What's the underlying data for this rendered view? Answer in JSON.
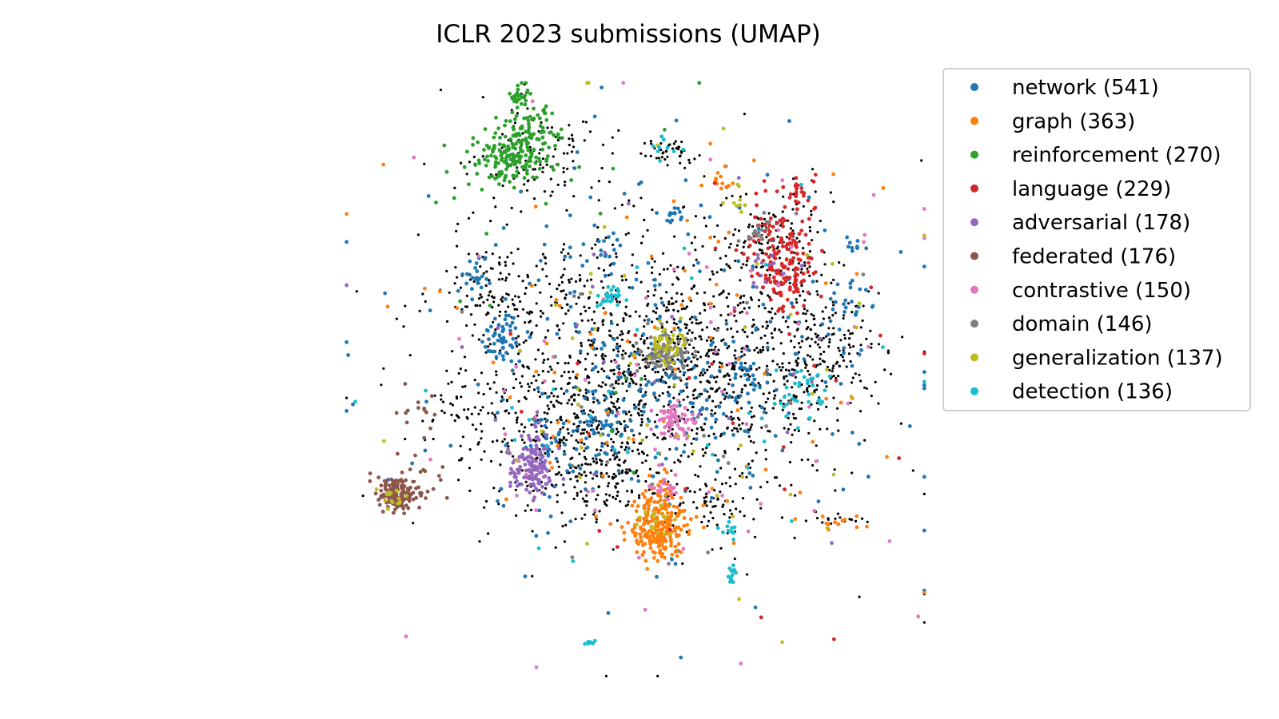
{
  "chart_data": {
    "type": "scatter",
    "title": "ICLR 2023 submissions (UMAP)",
    "xlabel": "",
    "ylabel": "",
    "axes_visible": false,
    "grid": false,
    "xlim": [
      -10,
      10
    ],
    "ylim": [
      -10,
      10
    ],
    "legend_position": "top-right",
    "background_points_color": "#000000",
    "series": [
      {
        "name": "network (541)",
        "color": "#1f77b4",
        "count": 541,
        "clusters": [
          {
            "center": [
              -4.6,
              1.4
            ],
            "spread": [
              0.35,
              0.45
            ],
            "n": 50
          },
          {
            "center": [
              -5.5,
              3.4
            ],
            "spread": [
              0.3,
              0.3
            ],
            "n": 22
          },
          {
            "center": [
              -2.7,
              -2.2
            ],
            "spread": [
              0.4,
              0.4
            ],
            "n": 30
          },
          {
            "center": [
              0.8,
              -0.2
            ],
            "spread": [
              1.5,
              0.9
            ],
            "n": 70
          },
          {
            "center": [
              1.2,
              5.5
            ],
            "spread": [
              0.25,
              0.15
            ],
            "n": 12
          },
          {
            "center": [
              -0.9,
              4.3
            ],
            "spread": [
              0.25,
              0.25
            ],
            "n": 10
          },
          {
            "center": [
              3.8,
              0.0
            ],
            "spread": [
              0.4,
              0.4
            ],
            "n": 24
          },
          {
            "center": [
              7.2,
              2.5
            ],
            "spread": [
              0.5,
              0.6
            ],
            "n": 25
          },
          {
            "center": [
              7.6,
              4.5
            ],
            "spread": [
              0.25,
              0.15
            ],
            "n": 10
          },
          {
            "center": [
              -1.0,
              -1.4
            ],
            "spread": [
              0.4,
              0.4
            ],
            "n": 30
          },
          {
            "center": [
              0.5,
              0.0
            ],
            "spread": [
              4.2,
              3.4
            ],
            "n": 258
          }
        ]
      },
      {
        "name": "graph (363)",
        "color": "#ff7f0e",
        "count": 363,
        "clusters": [
          {
            "center": [
              0.8,
              -5.0
            ],
            "spread": [
              0.45,
              0.5
            ],
            "n": 215
          },
          {
            "center": [
              0.8,
              -4.0
            ],
            "spread": [
              0.3,
              0.35
            ],
            "n": 40
          },
          {
            "center": [
              2.9,
              6.6
            ],
            "spread": [
              0.35,
              0.3
            ],
            "n": 12
          },
          {
            "center": [
              7.1,
              -4.7
            ],
            "spread": [
              0.5,
              0.15
            ],
            "n": 12
          },
          {
            "center": [
              0.5,
              0.5
            ],
            "spread": [
              4.2,
              3.4
            ],
            "n": 84
          }
        ]
      },
      {
        "name": "reinforcement (270)",
        "color": "#2ca02c",
        "count": 270,
        "clusters": [
          {
            "center": [
              -4.2,
              7.4
            ],
            "spread": [
              0.7,
              0.45
            ],
            "n": 170
          },
          {
            "center": [
              -3.4,
              8.6
            ],
            "spread": [
              0.45,
              0.45
            ],
            "n": 55
          },
          {
            "center": [
              -4.0,
              9.5
            ],
            "spread": [
              0.2,
              0.15
            ],
            "n": 25
          },
          {
            "center": [
              -1.5,
              5.0
            ],
            "spread": [
              3.0,
              3.0
            ],
            "n": 20
          }
        ]
      },
      {
        "name": "language (229)",
        "color": "#d62728",
        "count": 229,
        "clusters": [
          {
            "center": [
              4.8,
              4.6
            ],
            "spread": [
              0.55,
              0.6
            ],
            "n": 100
          },
          {
            "center": [
              5.2,
              3.2
            ],
            "spread": [
              0.45,
              0.4
            ],
            "n": 70
          },
          {
            "center": [
              5.6,
              6.2
            ],
            "spread": [
              0.3,
              0.3
            ],
            "n": 25
          },
          {
            "center": [
              3.0,
              0.0
            ],
            "spread": [
              3.5,
              3.5
            ],
            "n": 34
          }
        ]
      },
      {
        "name": "adversarial (178)",
        "color": "#9467bd",
        "count": 178,
        "clusters": [
          {
            "center": [
              -3.6,
              -3.0
            ],
            "spread": [
              0.4,
              0.4
            ],
            "n": 110
          },
          {
            "center": [
              -3.4,
              -2.4
            ],
            "spread": [
              0.25,
              0.3
            ],
            "n": 25
          },
          {
            "center": [
              4.4,
              3.8
            ],
            "spread": [
              0.4,
              0.4
            ],
            "n": 15
          },
          {
            "center": [
              0.0,
              1.0
            ],
            "spread": [
              4.0,
              4.0
            ],
            "n": 28
          }
        ]
      },
      {
        "name": "federated (176)",
        "color": "#8c564b",
        "count": 176,
        "clusters": [
          {
            "center": [
              -8.3,
              -3.8
            ],
            "spread": [
              0.3,
              0.28
            ],
            "n": 130
          },
          {
            "center": [
              -7.4,
              -3.6
            ],
            "spread": [
              0.45,
              0.4
            ],
            "n": 30
          },
          {
            "center": [
              -7.6,
              -1.5
            ],
            "spread": [
              0.4,
              0.6
            ],
            "n": 16
          }
        ]
      },
      {
        "name": "contrastive (150)",
        "color": "#e377c2",
        "count": 150,
        "clusters": [
          {
            "center": [
              1.4,
              -1.4
            ],
            "spread": [
              0.35,
              0.3
            ],
            "n": 60
          },
          {
            "center": [
              1.0,
              -3.6
            ],
            "spread": [
              0.3,
              0.3
            ],
            "n": 15
          },
          {
            "center": [
              1.0,
              0.0
            ],
            "spread": [
              4.0,
              4.0
            ],
            "n": 75
          }
        ]
      },
      {
        "name": "domain (146)",
        "color": "#7f7f7f",
        "count": 146,
        "clusters": [
          {
            "center": [
              1.0,
              0.9
            ],
            "spread": [
              0.4,
              0.3
            ],
            "n": 100
          },
          {
            "center": [
              4.3,
              5.0
            ],
            "spread": [
              0.2,
              0.25
            ],
            "n": 15
          },
          {
            "center": [
              0.5,
              0.5
            ],
            "spread": [
              3.2,
              3.2
            ],
            "n": 31
          }
        ]
      },
      {
        "name": "generalization (137)",
        "color": "#bcbd22",
        "count": 137,
        "clusters": [
          {
            "center": [
              1.0,
              1.2
            ],
            "spread": [
              0.3,
              0.3
            ],
            "n": 45
          },
          {
            "center": [
              -8.3,
              -3.9
            ],
            "spread": [
              0.2,
              0.2
            ],
            "n": 15
          },
          {
            "center": [
              0.7,
              -4.6
            ],
            "spread": [
              0.3,
              0.3
            ],
            "n": 15
          },
          {
            "center": [
              3.5,
              6.0
            ],
            "spread": [
              0.3,
              0.3
            ],
            "n": 8
          },
          {
            "center": [
              0.5,
              0.5
            ],
            "spread": [
              4.0,
              4.0
            ],
            "n": 54
          }
        ]
      },
      {
        "name": "detection (136)",
        "color": "#17becf",
        "count": 136,
        "clusters": [
          {
            "center": [
              -0.8,
              2.7
            ],
            "spread": [
              0.2,
              0.2
            ],
            "n": 30
          },
          {
            "center": [
              3.3,
              -6.5
            ],
            "spread": [
              0.06,
              0.2
            ],
            "n": 15
          },
          {
            "center": [
              -1.6,
              -8.8
            ],
            "spread": [
              0.08,
              0.12
            ],
            "n": 8
          },
          {
            "center": [
              6.0,
              -0.5
            ],
            "spread": [
              0.6,
              0.5
            ],
            "n": 35
          },
          {
            "center": [
              1.1,
              7.6
            ],
            "spread": [
              0.3,
              0.25
            ],
            "n": 10
          },
          {
            "center": [
              3.2,
              -5.0
            ],
            "spread": [
              0.15,
              0.15
            ],
            "n": 10
          },
          {
            "center": [
              0.5,
              0.0
            ],
            "spread": [
              4.0,
              3.5
            ],
            "n": 28
          }
        ]
      }
    ],
    "unlabeled_points": {
      "color": "#000000",
      "clusters": [
        {
          "center": [
            0.5,
            1.0
          ],
          "spread": [
            2.8,
            2.2
          ],
          "n": 800
        },
        {
          "center": [
            -2.0,
            -2.0
          ],
          "spread": [
            1.6,
            1.4
          ],
          "n": 250
        },
        {
          "center": [
            3.5,
            0.0
          ],
          "spread": [
            1.6,
            1.8
          ],
          "n": 250
        },
        {
          "center": [
            6.5,
            0.8
          ],
          "spread": [
            0.9,
            1.2
          ],
          "n": 160
        },
        {
          "center": [
            -3.5,
            7.6
          ],
          "spread": [
            1.0,
            0.8
          ],
          "n": 100
        },
        {
          "center": [
            -5.0,
            2.8
          ],
          "spread": [
            0.8,
            0.8
          ],
          "n": 90
        },
        {
          "center": [
            1.1,
            7.6
          ],
          "spread": [
            0.5,
            0.25
          ],
          "n": 40
        },
        {
          "center": [
            4.8,
            4.6
          ],
          "spread": [
            0.8,
            0.8
          ],
          "n": 100
        },
        {
          "center": [
            -1.0,
            -3.4
          ],
          "spread": [
            1.0,
            0.6
          ],
          "n": 90
        },
        {
          "center": [
            3.0,
            -4.2
          ],
          "spread": [
            0.8,
            0.6
          ],
          "n": 50
        },
        {
          "center": [
            -5.5,
            -1.0
          ],
          "spread": [
            0.7,
            0.9
          ],
          "n": 50
        },
        {
          "center": [
            7.1,
            -4.7
          ],
          "spread": [
            0.5,
            0.15
          ],
          "n": 15
        },
        {
          "center": [
            0.5,
            0.5
          ],
          "spread": [
            4.8,
            4.0
          ],
          "n": 200
        }
      ]
    }
  }
}
